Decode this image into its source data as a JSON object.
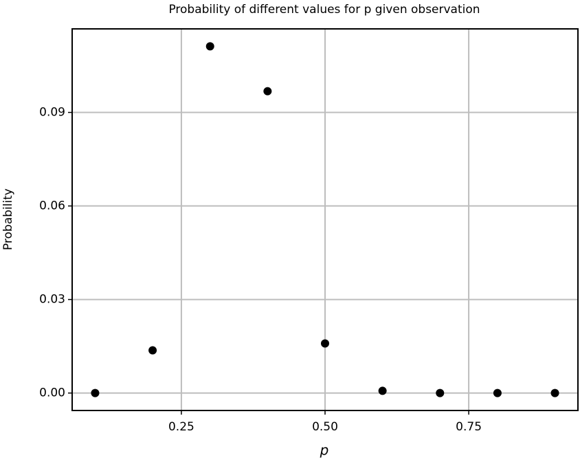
{
  "chart_data": {
    "type": "scatter",
    "title": "Probability of different values for p given observation",
    "x_label": "p",
    "y_label": "Probability",
    "x": [
      0.1,
      0.2,
      0.3,
      0.4,
      0.5,
      0.6,
      0.7,
      0.8,
      0.9
    ],
    "values": [
      0,
      0.0137,
      0.1112,
      0.0968,
      0.0159,
      0.0007,
      0,
      0,
      0
    ],
    "color": "#000000",
    "xlim": [
      0.06,
      0.94
    ],
    "xticks": [
      0.25,
      {
        "value": 0.5,
        "label": "0.50"
      },
      0.75
    ],
    "ylim": [
      -0.0056,
      0.1168
    ],
    "yticks": [
      {
        "value": 0,
        "label": "0.00"
      },
      {
        "value": 0.03,
        "label": "0.03"
      },
      {
        "value": 0.06,
        "label": "0.06"
      },
      {
        "value": 0.09,
        "label": "0.09"
      }
    ],
    "grid": true
  }
}
